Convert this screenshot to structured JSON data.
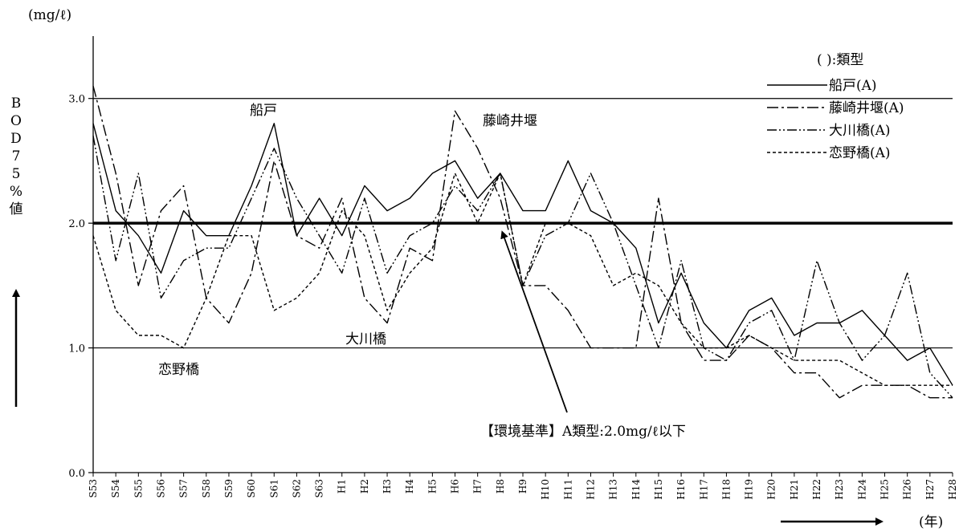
{
  "chart_data": {
    "type": "line",
    "unit_label": "(mg/ℓ)",
    "ylabel": "BOD75%値",
    "ylim": [
      0,
      3.5
    ],
    "yticks": [
      "0.0",
      "1.0",
      "2.0",
      "3.0"
    ],
    "xlabel": "(年)",
    "categories": [
      "S53",
      "S54",
      "S55",
      "S56",
      "S57",
      "S58",
      "S59",
      "S60",
      "S61",
      "S62",
      "S63",
      "H1",
      "H2",
      "H3",
      "H4",
      "H5",
      "H6",
      "H7",
      "H8",
      "H9",
      "H10",
      "H11",
      "H12",
      "H13",
      "H14",
      "H15",
      "H16",
      "H17",
      "H18",
      "H19",
      "H20",
      "H21",
      "H22",
      "H23",
      "H24",
      "H25",
      "H26",
      "H27",
      "H28"
    ],
    "legend_title": "(   ):類型",
    "series": [
      {
        "name": "船戸(A)",
        "dash": "solid",
        "values": [
          2.8,
          2.1,
          1.9,
          1.6,
          2.1,
          1.9,
          1.9,
          2.3,
          2.8,
          1.9,
          2.2,
          1.9,
          2.3,
          2.1,
          2.2,
          2.4,
          2.5,
          2.2,
          2.4,
          2.1,
          2.1,
          2.5,
          2.1,
          2.0,
          1.8,
          1.2,
          1.6,
          1.2,
          1.0,
          1.3,
          1.4,
          1.1,
          1.2,
          1.2,
          1.3,
          1.1,
          0.9,
          1.0,
          0.7
        ]
      },
      {
        "name": "藤崎井堰(A)",
        "dash": "dashdot",
        "values": [
          3.1,
          2.4,
          1.5,
          2.1,
          2.3,
          1.4,
          1.2,
          1.6,
          2.5,
          1.9,
          1.8,
          2.2,
          1.4,
          1.2,
          1.8,
          1.7,
          2.9,
          2.6,
          2.2,
          1.5,
          1.5,
          1.3,
          1.0,
          1.0,
          1.0,
          2.2,
          1.2,
          0.9,
          0.9,
          1.1,
          1.0,
          0.8,
          0.8,
          0.6,
          0.7,
          0.7,
          0.7,
          0.6,
          0.6
        ]
      },
      {
        "name": "大川橋(A)",
        "dash": "dashdotdot",
        "values": [
          2.7,
          1.7,
          2.4,
          1.4,
          1.7,
          1.8,
          1.8,
          2.2,
          2.6,
          2.2,
          1.9,
          1.6,
          2.2,
          1.6,
          1.9,
          2.0,
          2.3,
          2.1,
          2.4,
          1.5,
          1.9,
          2.0,
          2.4,
          2.0,
          1.5,
          1.0,
          1.7,
          1.0,
          0.9,
          1.2,
          1.3,
          0.9,
          1.7,
          1.2,
          0.9,
          1.1,
          1.6,
          0.8,
          0.6
        ]
      },
      {
        "name": "恋野橋(A)",
        "dash": "dot",
        "values": [
          1.9,
          1.3,
          1.1,
          1.1,
          1.0,
          1.4,
          1.9,
          1.9,
          1.3,
          1.4,
          1.6,
          2.1,
          1.9,
          1.3,
          1.6,
          1.8,
          2.4,
          2.0,
          2.4,
          1.5,
          2.0,
          2.0,
          1.9,
          1.5,
          1.6,
          1.5,
          1.2,
          1.0,
          1.0,
          1.1,
          1.0,
          0.9,
          0.9,
          0.9,
          0.8,
          0.7,
          0.7,
          0.7,
          0.7
        ]
      }
    ],
    "reference_lines": [
      1.0,
      2.0,
      3.0
    ],
    "standard_value": 2.0,
    "annotations": {
      "funato": "船戸",
      "fujisaki": "藤崎井堰",
      "okawa": "大川橋",
      "koino": "恋野橋",
      "standard": "【環境基準】A類型:2.0mg/ℓ以下"
    },
    "grid": false,
    "legend_position": "top-right"
  }
}
